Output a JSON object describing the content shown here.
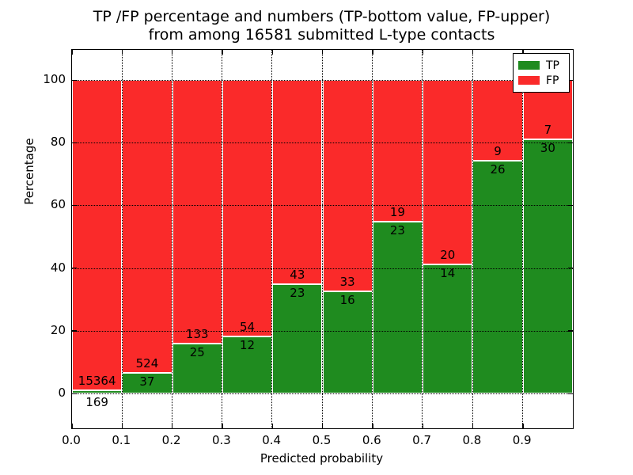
{
  "title": {
    "line1": "TP /FP percentage and numbers (TP-bottom value, FP-upper)",
    "line2": "from among 16581 submitted L-type contacts"
  },
  "chart_data": {
    "type": "bar",
    "stacked": true,
    "orientation": "vertical",
    "title": "TP /FP percentage and numbers (TP-bottom value, FP-upper) from among 16581 submitted L-type contacts",
    "xlabel": "Predicted probability",
    "ylabel": "Percentage",
    "total_submitted": 16581,
    "x_bin_start": [
      "0.0",
      "0.1",
      "0.2",
      "0.3",
      "0.4",
      "0.5",
      "0.6",
      "0.7",
      "0.8",
      "0.9"
    ],
    "x_tick_labels": [
      "0.0",
      "0.1",
      "0.2",
      "0.3",
      "0.4",
      "0.5",
      "0.6",
      "0.7",
      "0.8",
      "0.9"
    ],
    "y_tick_labels": [
      "0",
      "20",
      "40",
      "60",
      "80",
      "100"
    ],
    "y_tick_values": [
      0,
      20,
      40,
      60,
      80,
      100
    ],
    "xlim": [
      0.0,
      1.0
    ],
    "ylim": [
      -11,
      110
    ],
    "grid": "dotted",
    "legend_position": "upper right",
    "bar_unit": "percent of bin total (TP+FP = 100%)",
    "series": [
      {
        "name": "TP",
        "color": "#1f8b1f",
        "counts": [
          169,
          37,
          25,
          12,
          23,
          16,
          23,
          14,
          26,
          30
        ]
      },
      {
        "name": "FP",
        "color": "#fa2a2a",
        "counts": [
          15364,
          524,
          133,
          54,
          43,
          33,
          19,
          20,
          9,
          7
        ]
      }
    ]
  },
  "legend": {
    "items": [
      {
        "label": "TP",
        "color": "#1f8b1f"
      },
      {
        "label": "FP",
        "color": "#fa2a2a"
      }
    ]
  }
}
